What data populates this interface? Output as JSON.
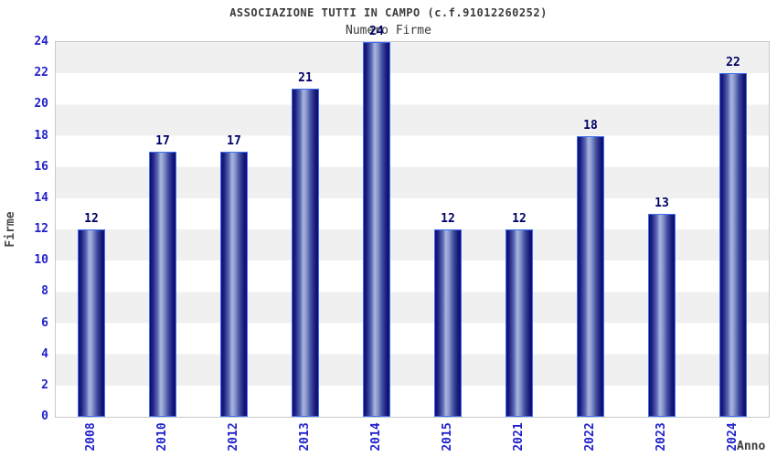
{
  "header": {
    "title": "ASSOCIAZIONE TUTTI IN CAMPO (c.f.91012260252)",
    "subtitle": "Numero Firme"
  },
  "chart_data": {
    "type": "bar",
    "title": "ASSOCIAZIONE TUTTI IN CAMPO (c.f.91012260252)",
    "subtitle": "Numero Firme",
    "categories": [
      "2008",
      "2010",
      "2012",
      "2013",
      "2014",
      "2015",
      "2021",
      "2022",
      "2023",
      "2024"
    ],
    "values": [
      12,
      17,
      17,
      21,
      24,
      12,
      12,
      18,
      13,
      22
    ],
    "xlabel": "Anno",
    "ylabel": "Firme",
    "ylim": [
      0,
      24
    ],
    "ytick_step": 2,
    "yticks": [
      0,
      2,
      4,
      6,
      8,
      10,
      12,
      14,
      16,
      18,
      20,
      22,
      24
    ],
    "bar_labels_shown": true,
    "legend": "none",
    "grid": "alternating horizontal bands of 2 units, gray then white from top",
    "x_tick_rotation_deg": 90
  },
  "colors": {
    "band_gray": "#f0f0f0",
    "band_white": "#ffffff",
    "plot_border": "#c9c9c9",
    "bar_border_blue": "#3f6ff0",
    "bar_dark_navy": "#0f0f6e",
    "bar_center_light": "#aab4e0",
    "value_label_navy": "#000066",
    "tick_label_blue": "#2222cc",
    "title_gray": "#3c3c3c"
  }
}
